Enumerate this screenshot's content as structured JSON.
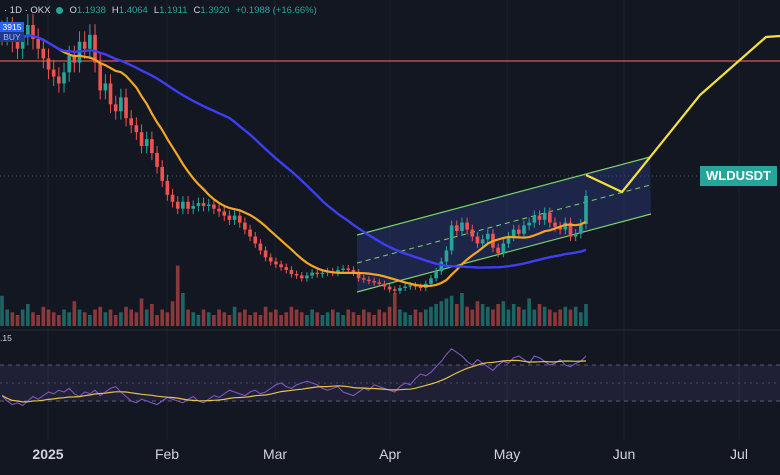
{
  "header": {
    "symbol": "· 1D · OKX",
    "o_key": "O",
    "o_val": "1.1938",
    "h_key": "H",
    "h_val": "1.4064",
    "l_key": "L",
    "l_val": "1.1911",
    "c_key": "C",
    "c_val": "1.3920",
    "change": "+0.1988 (+16.66%)"
  },
  "price_box": {
    "top": "3915",
    "bottom": "BUY"
  },
  "rsi_label": ".15",
  "ticker_label": "WLDUSDT",
  "colors": {
    "background": "#131722",
    "up": "#26a69a",
    "down": "#ef5350",
    "ma_short": "#f5a623",
    "ma_long": "#3d3ef5",
    "resistance": "#e2564b",
    "channel": "#7bd46b",
    "projection": "#f2e23a",
    "rsi": "#7e57c2",
    "rsi_ma": "#e5c24b"
  },
  "chart_data": {
    "type": "candlestick",
    "x_axis_labels": [
      "2025",
      "Feb",
      "Mar",
      "Apr",
      "May",
      "Jun",
      "Jul"
    ],
    "ohlc_last": {
      "open": 1.1938,
      "high": 1.4064,
      "low": 1.1911,
      "close": 1.392,
      "change": 0.1988,
      "change_pct": 16.66
    },
    "close_series_approx": [
      2.55,
      2.6,
      2.5,
      2.45,
      2.55,
      2.62,
      2.52,
      2.45,
      2.38,
      2.3,
      2.25,
      2.2,
      2.28,
      2.4,
      2.35,
      2.5,
      2.45,
      2.55,
      2.35,
      2.15,
      2.2,
      2.05,
      2.0,
      2.1,
      1.95,
      1.9,
      1.85,
      1.75,
      1.8,
      1.7,
      1.6,
      1.5,
      1.4,
      1.35,
      1.3,
      1.35,
      1.3,
      1.32,
      1.34,
      1.32,
      1.33,
      1.3,
      1.28,
      1.25,
      1.22,
      1.25,
      1.2,
      1.15,
      1.1,
      1.05,
      1.0,
      0.95,
      0.92,
      0.9,
      0.88,
      0.86,
      0.83,
      0.82,
      0.8,
      0.82,
      0.84,
      0.83,
      0.84,
      0.85,
      0.84,
      0.86,
      0.87,
      0.86,
      0.84,
      0.8,
      0.79,
      0.78,
      0.77,
      0.76,
      0.74,
      0.72,
      0.71,
      0.73,
      0.74,
      0.75,
      0.74,
      0.73,
      0.76,
      0.8,
      0.85,
      0.92,
      1.0,
      1.18,
      1.14,
      1.2,
      1.15,
      1.1,
      1.05,
      1.08,
      1.12,
      1.02,
      0.98,
      1.05,
      1.1,
      1.15,
      1.12,
      1.18,
      1.2,
      1.25,
      1.22,
      1.27,
      1.2,
      1.17,
      1.15,
      1.2,
      1.1,
      1.12,
      1.19,
      1.392
    ],
    "volume_series_approx": [
      55,
      30,
      25,
      20,
      30,
      40,
      25,
      20,
      35,
      30,
      25,
      20,
      30,
      25,
      45,
      30,
      25,
      20,
      30,
      35,
      25,
      30,
      20,
      25,
      35,
      30,
      25,
      50,
      30,
      40,
      20,
      30,
      25,
      45,
      110,
      60,
      30,
      25,
      20,
      30,
      25,
      20,
      30,
      25,
      20,
      35,
      25,
      30,
      20,
      25,
      20,
      35,
      25,
      30,
      20,
      25,
      35,
      30,
      25,
      20,
      30,
      25,
      20,
      25,
      30,
      25,
      20,
      30,
      25,
      20,
      30,
      25,
      20,
      30,
      25,
      35,
      60,
      30,
      25,
      20,
      30,
      25,
      30,
      35,
      40,
      45,
      50,
      55,
      40,
      60,
      35,
      30,
      45,
      40,
      35,
      30,
      40,
      45,
      30,
      40,
      35,
      30,
      50,
      30,
      40,
      35,
      30,
      25,
      30,
      35,
      30,
      35,
      25,
      40
    ],
    "moving_averages": [
      "short",
      "long"
    ],
    "annotations": [
      "horizontal resistance line",
      "ascending channel",
      "projected path"
    ],
    "oscillator": "RSI",
    "rsi_series_approx": [
      36,
      30,
      26,
      28,
      25,
      30,
      35,
      32,
      36,
      40,
      38,
      42,
      40,
      44,
      38,
      35,
      40,
      38,
      42,
      36,
      40,
      44,
      46,
      40,
      35,
      30,
      28,
      32,
      30,
      28,
      26,
      30,
      34,
      32,
      30,
      28,
      32,
      35,
      30,
      28,
      32,
      36,
      34,
      38,
      42,
      40,
      38,
      36,
      40,
      42,
      38,
      40,
      44,
      48,
      50,
      46,
      44,
      48,
      50,
      52,
      50,
      48,
      44,
      42,
      44,
      46,
      40,
      38,
      36,
      40,
      44,
      42,
      48,
      46,
      44,
      42,
      40,
      46,
      50,
      48,
      55,
      60,
      58,
      62,
      68,
      74,
      82,
      88,
      84,
      80,
      74,
      70,
      76,
      72,
      68,
      64,
      70,
      74,
      72,
      78,
      80,
      76,
      72,
      80,
      78,
      74,
      70,
      72,
      76,
      70,
      68,
      72,
      74,
      80
    ]
  }
}
